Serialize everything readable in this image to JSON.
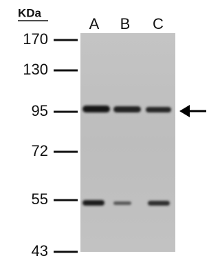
{
  "unit": "KDa",
  "markers": [
    170,
    130,
    95,
    72,
    55,
    43
  ],
  "lanes": [
    "A",
    "B",
    "C"
  ]
}
